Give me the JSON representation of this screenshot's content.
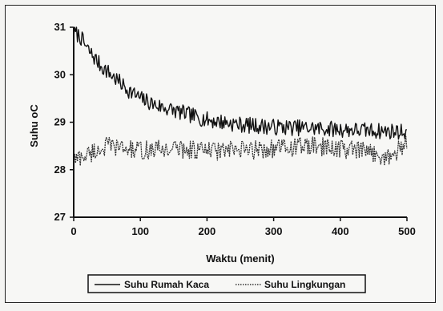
{
  "chart_data": {
    "type": "line",
    "title": "",
    "xlabel": "Waktu (menit)",
    "ylabel": "Suhu oC",
    "xlim": [
      0,
      500
    ],
    "ylim": [
      27,
      31
    ],
    "x_ticks": [
      "0",
      "100",
      "200",
      "300",
      "400",
      "500"
    ],
    "y_ticks": [
      "27",
      "28",
      "29",
      "30",
      "31"
    ],
    "grid": false,
    "legend_position": "bottom",
    "series": [
      {
        "name": "Suhu Rumah Kaca",
        "style": "solid",
        "color": "#111111",
        "x": [
          0,
          10,
          20,
          40,
          60,
          80,
          100,
          125,
          150,
          175,
          200,
          250,
          300,
          350,
          400,
          450,
          500
        ],
        "values": [
          30.9,
          30.8,
          30.55,
          30.2,
          29.95,
          29.7,
          29.5,
          29.35,
          29.25,
          29.15,
          29.05,
          28.95,
          28.9,
          28.88,
          28.85,
          28.82,
          28.8
        ]
      },
      {
        "name": "Suhu Lingkungan",
        "style": "dotted",
        "color": "#333333",
        "x": [
          0,
          25,
          50,
          75,
          100,
          150,
          200,
          250,
          300,
          350,
          400,
          450,
          475,
          500
        ],
        "values": [
          28.2,
          28.35,
          28.5,
          28.45,
          28.4,
          28.45,
          28.4,
          28.4,
          28.45,
          28.5,
          28.45,
          28.35,
          28.25,
          28.6
        ]
      }
    ]
  }
}
